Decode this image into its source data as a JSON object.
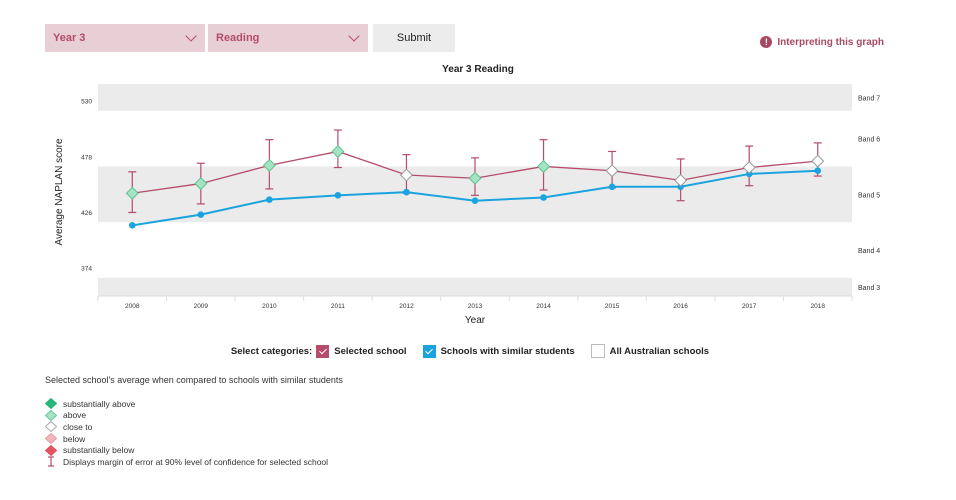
{
  "controls": {
    "year_select": "Year 3",
    "subject_select": "Reading",
    "submit_label": "Submit"
  },
  "help_link": "Interpreting this graph",
  "colors": {
    "selected_school": "#b54c6a",
    "similar_students": "#1aa3df",
    "band_shade": "#ebebeb",
    "substantially_above": "#29b779",
    "above": "#a6e3c4",
    "close_to": "#ffffff",
    "below": "#f1b7bd",
    "substantially_below": "#e2545f"
  },
  "chart_data": {
    "type": "line",
    "title": "Year 3 Reading",
    "xlabel": "Year",
    "ylabel": "Average NAPLAN score",
    "x": [
      "2008",
      "2009",
      "2010",
      "2011",
      "2012",
      "2013",
      "2014",
      "2015",
      "2016",
      "2017",
      "2018"
    ],
    "ylim": [
      348,
      546
    ],
    "y_ticks": [
      374,
      426,
      478,
      530
    ],
    "bands": [
      {
        "label": "Band 7",
        "from": 521,
        "to": 546,
        "shaded": true
      },
      {
        "label": "Band 6",
        "from": 469,
        "to": 521,
        "shaded": false
      },
      {
        "label": "Band 5",
        "from": 417,
        "to": 469,
        "shaded": true
      },
      {
        "label": "Band 4",
        "from": 365,
        "to": 417,
        "shaded": false
      },
      {
        "label": "Band 3",
        "from": 348,
        "to": 365,
        "shaded": true
      }
    ],
    "series": [
      {
        "name": "Selected school",
        "values": [
          444,
          453,
          470,
          483,
          461,
          458,
          469,
          465,
          456,
          468,
          474
        ],
        "error_low": [
          426,
          434,
          448,
          468,
          444,
          442,
          447,
          449,
          437,
          451,
          460
        ],
        "error_high": [
          464,
          472,
          494,
          503,
          480,
          477,
          494,
          483,
          476,
          488,
          491
        ],
        "comparison": [
          "above",
          "above",
          "above",
          "above",
          "close_to",
          "above",
          "above",
          "close_to",
          "close_to",
          "close_to",
          "close_to"
        ]
      },
      {
        "name": "Schools with similar students",
        "values": [
          414,
          424,
          438,
          442,
          445,
          437,
          440,
          450,
          450,
          462,
          465
        ]
      }
    ]
  },
  "categories": {
    "title": "Select categories:",
    "items": [
      {
        "label": "Selected school",
        "checked": true
      },
      {
        "label": "Schools with similar students",
        "checked": true
      },
      {
        "label": "All Australian schools",
        "checked": false
      }
    ]
  },
  "compare_text": "Selected school's average when compared to schools with similar students",
  "legend": [
    {
      "icon": "diamond-icon",
      "label": "substantially above",
      "color": "#29b779"
    },
    {
      "icon": "diamond-icon",
      "label": "above",
      "color": "#a6e3c4"
    },
    {
      "icon": "diamond-icon",
      "label": "close to",
      "color": "#ffffff"
    },
    {
      "icon": "diamond-icon",
      "label": "below",
      "color": "#f1b7bd"
    },
    {
      "icon": "diamond-icon",
      "label": "substantially below",
      "color": "#e2545f"
    },
    {
      "icon": "error-bar-icon",
      "label": "Displays margin of error at 90% level of confidence for selected school",
      "color": "#b54c6a"
    }
  ]
}
